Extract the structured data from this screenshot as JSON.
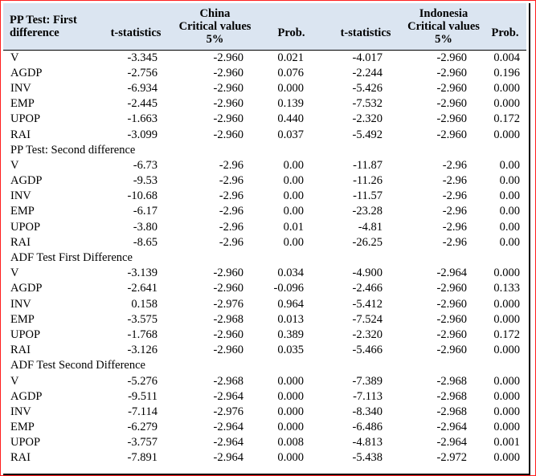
{
  "header": {
    "first_col": "PP Test: First difference",
    "china": "China",
    "indonesia": "Indonesia",
    "tstat": "t-statistics",
    "critical": "Critical values 5%",
    "prob": "Prob."
  },
  "sections": [
    {
      "title": "",
      "rows": [
        {
          "var": "V",
          "c_t": "-3.345",
          "c_c": "-2.960",
          "c_p": "0.021",
          "i_t": "-4.017",
          "i_c": "-2.960",
          "i_p": "0.004"
        },
        {
          "var": "AGDP",
          "c_t": "-2.756",
          "c_c": "-2.960",
          "c_p": "0.076",
          "i_t": "-2.244",
          "i_c": "-2.960",
          "i_p": "0.196"
        },
        {
          "var": "INV",
          "c_t": "-6.934",
          "c_c": "-2.960",
          "c_p": "0.000",
          "i_t": "-5.426",
          "i_c": "-2.960",
          "i_p": "0.000"
        },
        {
          "var": "EMP",
          "c_t": "-2.445",
          "c_c": "-2.960",
          "c_p": "0.139",
          "i_t": "-7.532",
          "i_c": "-2.960",
          "i_p": "0.000"
        },
        {
          "var": "UPOP",
          "c_t": "-1.663",
          "c_c": "-2.960",
          "c_p": "0.440",
          "i_t": "-2.320",
          "i_c": "-2.960",
          "i_p": "0.172"
        },
        {
          "var": "RAI",
          "c_t": "-3.099",
          "c_c": "-2.960",
          "c_p": "0.037",
          "i_t": "-5.492",
          "i_c": "-2.960",
          "i_p": "0.000"
        }
      ]
    },
    {
      "title": "PP Test: Second difference",
      "rows": [
        {
          "var": "V",
          "c_t": "-6.73",
          "c_c": "-2.96",
          "c_p": "0.00",
          "i_t": "-11.87",
          "i_c": "-2.96",
          "i_p": "0.00"
        },
        {
          "var": "AGDP",
          "c_t": "-9.53",
          "c_c": "-2.96",
          "c_p": "0.00",
          "i_t": "-11.26",
          "i_c": "-2.96",
          "i_p": "0.00"
        },
        {
          "var": "INV",
          "c_t": "-10.68",
          "c_c": "-2.96",
          "c_p": "0.00",
          "i_t": "-11.57",
          "i_c": "-2.96",
          "i_p": "0.00"
        },
        {
          "var": "EMP",
          "c_t": "-6.17",
          "c_c": "-2.96",
          "c_p": "0.00",
          "i_t": "-23.28",
          "i_c": "-2.96",
          "i_p": "0.00"
        },
        {
          "var": "UPOP",
          "c_t": "-3.80",
          "c_c": "-2.96",
          "c_p": "0.01",
          "i_t": "-4.81",
          "i_c": "-2.96",
          "i_p": "0.00"
        },
        {
          "var": "RAI",
          "c_t": "-8.65",
          "c_c": "-2.96",
          "c_p": "0.00",
          "i_t": "-26.25",
          "i_c": "-2.96",
          "i_p": "0.00"
        }
      ]
    },
    {
      "title": "ADF Test First Difference",
      "rows": [
        {
          "var": "V",
          "c_t": "-3.139",
          "c_c": "-2.960",
          "c_p": "0.034",
          "i_t": "-4.900",
          "i_c": "-2.964",
          "i_p": "0.000"
        },
        {
          "var": "AGDP",
          "c_t": "-2.641",
          "c_c": "-2.960",
          "c_p": "-0.096",
          "i_t": "-2.466",
          "i_c": "-2.960",
          "i_p": "0.133"
        },
        {
          "var": "INV",
          "c_t": "0.158",
          "c_c": "-2.976",
          "c_p": "0.964",
          "i_t": "-5.412",
          "i_c": "-2.960",
          "i_p": "0.000"
        },
        {
          "var": "EMP",
          "c_t": "-3.575",
          "c_c": "-2.968",
          "c_p": "0.013",
          "i_t": "-7.524",
          "i_c": "-2.960",
          "i_p": "0.000"
        },
        {
          "var": "UPOP",
          "c_t": "-1.768",
          "c_c": "-2.960",
          "c_p": "0.389",
          "i_t": "-2.320",
          "i_c": "-2.960",
          "i_p": "0.172"
        },
        {
          "var": "RAI",
          "c_t": "-3.126",
          "c_c": "-2.960",
          "c_p": "0.035",
          "i_t": "-5.466",
          "i_c": "-2.960",
          "i_p": "0.000"
        }
      ]
    },
    {
      "title": "ADF Test Second Difference",
      "rows": [
        {
          "var": "V",
          "c_t": "-5.276",
          "c_c": "-2.968",
          "c_p": "0.000",
          "i_t": "-7.389",
          "i_c": "-2.968",
          "i_p": "0.000"
        },
        {
          "var": "AGDP",
          "c_t": "-9.511",
          "c_c": "-2.964",
          "c_p": "0.000",
          "i_t": "-7.113",
          "i_c": "-2.968",
          "i_p": "0.000"
        },
        {
          "var": "INV",
          "c_t": "-7.114",
          "c_c": "-2.976",
          "c_p": "0.000",
          "i_t": "-8.340",
          "i_c": "-2.968",
          "i_p": "0.000"
        },
        {
          "var": "EMP",
          "c_t": "-6.279",
          "c_c": "-2.964",
          "c_p": "0.000",
          "i_t": "-6.486",
          "i_c": "-2.964",
          "i_p": "0.000"
        },
        {
          "var": "UPOP",
          "c_t": "-3.757",
          "c_c": "-2.964",
          "c_p": "0.008",
          "i_t": "-4.813",
          "i_c": "-2.964",
          "i_p": "0.001"
        },
        {
          "var": "RAI",
          "c_t": "-7.891",
          "c_c": "-2.964",
          "c_p": "0.000",
          "i_t": "-5.438",
          "i_c": "-2.972",
          "i_p": "0.000"
        }
      ]
    }
  ]
}
